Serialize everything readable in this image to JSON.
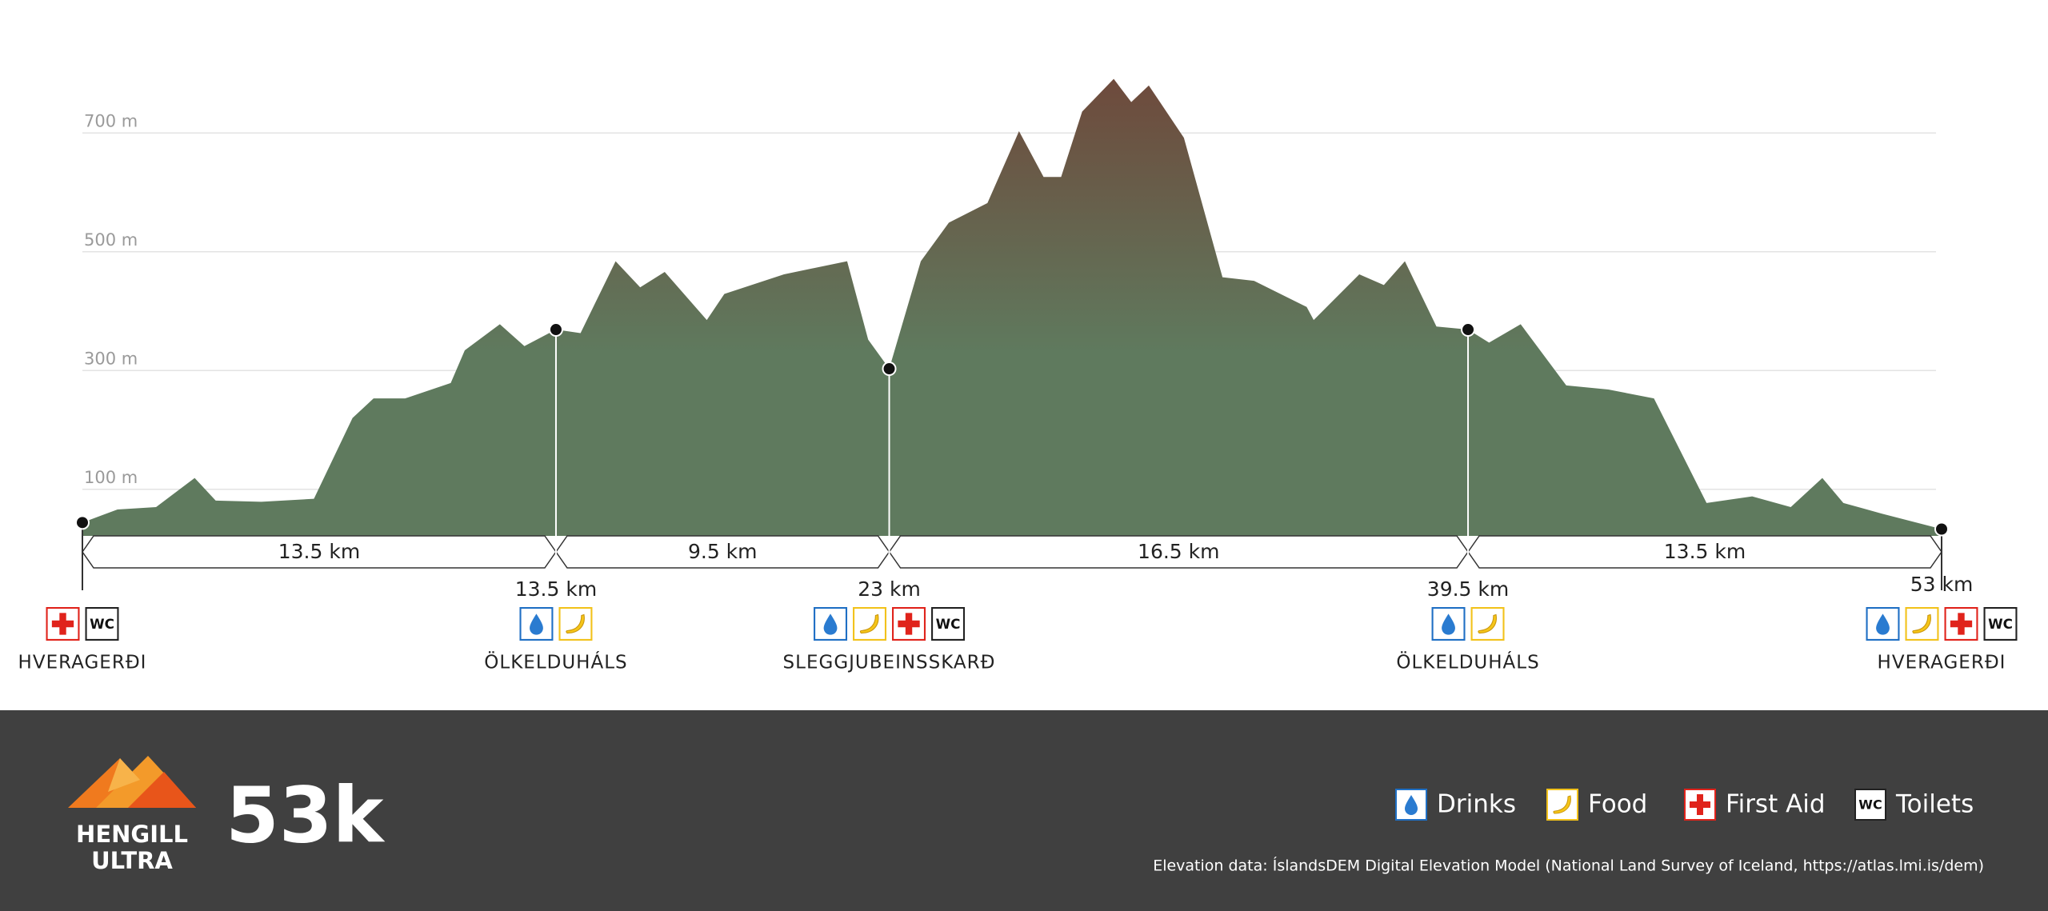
{
  "chart_data": {
    "type": "area",
    "x": [
      0,
      1.0,
      2.1,
      3.2,
      3.8,
      5.1,
      6.6,
      7.7,
      8.3,
      9.2,
      10.5,
      10.9,
      11.9,
      12.6,
      13.5,
      14.2,
      15.2,
      15.9,
      16.6,
      17.8,
      18.3,
      20.0,
      21.8,
      22.4,
      23.0,
      23.9,
      24.7,
      25.8,
      26.7,
      27.4,
      27.9,
      28.5,
      29.4,
      29.9,
      30.4,
      31.4,
      32.5,
      33.4,
      34.9,
      35.1,
      36.4,
      37.1,
      37.7,
      38.6,
      39.5,
      40.1,
      41.0,
      42.3,
      43.5,
      44.8,
      46.3,
      47.6,
      48.7,
      49.6,
      50.2,
      51.3,
      53.0
    ],
    "values": [
      44,
      66,
      70,
      119,
      81,
      79,
      84,
      220,
      253,
      253,
      279,
      334,
      378,
      341,
      369,
      363,
      484,
      440,
      466,
      385,
      429,
      462,
      484,
      352,
      303,
      484,
      549,
      582,
      703,
      626,
      626,
      736,
      791,
      752,
      780,
      692,
      457,
      451,
      407,
      385,
      462,
      444,
      484,
      374,
      369,
      347,
      378,
      275,
      268,
      253,
      77,
      88,
      70,
      119,
      77,
      59,
      33
    ],
    "xlim": [
      0,
      53
    ],
    "ylim": [
      0,
      800
    ],
    "yticks": [
      {
        "value": 100,
        "label": "100 m"
      },
      {
        "value": 300,
        "label": "300 m"
      },
      {
        "value": 500,
        "label": "500 m"
      },
      {
        "value": 700,
        "label": "700 m"
      }
    ],
    "grid": true,
    "color_top": "#6e4a3c",
    "color_bottom": "#5f7a5e"
  },
  "segments": [
    "13.5 km",
    "9.5 km",
    "16.5 km",
    "13.5 km"
  ],
  "checkpoints": [
    {
      "km": 0,
      "elevation": 44,
      "name": "HVERAGERÐI",
      "first_aid": true,
      "toilets": true
    },
    {
      "km": 13.5,
      "km_label": "13.5 km",
      "elevation": 369,
      "name": "ÖLKELDUHÁLS",
      "drinks": true,
      "food": true
    },
    {
      "km": 23,
      "km_label": "23 km",
      "elevation": 303,
      "name": "SLEGGJUBEINSSKARÐ",
      "drinks": true,
      "food": true,
      "first_aid": true,
      "toilets": true
    },
    {
      "km": 39.5,
      "km_label": "39.5 km",
      "elevation": 369,
      "name": "ÖLKELDUHÁLS",
      "drinks": true,
      "food": true
    },
    {
      "km": 53,
      "km_label": "53 km",
      "elevation": 33,
      "name": "HVERAGERÐI",
      "drinks": true,
      "food": true,
      "first_aid": true,
      "toilets": true
    }
  ],
  "wc_icon": "WC",
  "legend": {
    "drinks": "Drinks",
    "food": "Food",
    "first_aid": "First Aid",
    "toilets": "Toilets"
  },
  "footer": {
    "logo_line1": "HENGILL",
    "logo_line2": "ULTRA",
    "distance": "53k",
    "credit": "Elevation data: ÍslandsDEM Digital Elevation Model (National Land Survey of Iceland, https://atlas.lmi.is/dem)"
  }
}
